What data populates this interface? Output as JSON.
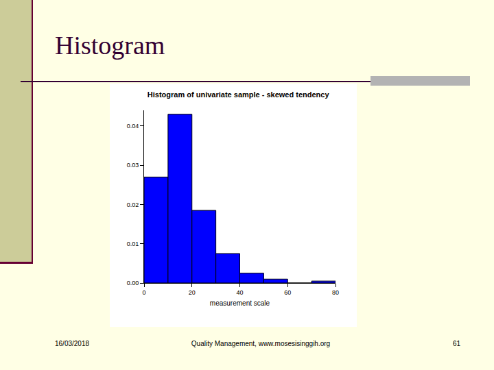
{
  "slide": {
    "title": "Histogram",
    "date": "16/03/2018",
    "footer": "Quality Management, www.mosesisinggih.org",
    "page": 61
  },
  "chart_data": {
    "type": "histogram",
    "title": "Histogram of univariate sample - skewed tendency",
    "x_label": "measurement scale",
    "bins": [
      0,
      10,
      20,
      30,
      40,
      50,
      60,
      70,
      80
    ],
    "values": [
      0.027,
      0.043,
      0.0185,
      0.0075,
      0.0025,
      0.001,
      0,
      0.0005
    ],
    "color": "#0000ff",
    "xlim": [
      0,
      80
    ],
    "xticks": [
      0,
      20,
      40,
      60,
      80
    ],
    "ylim": [
      0,
      0.044
    ],
    "yticks": [
      {
        "value": 0,
        "label": "0.00"
      },
      0.01,
      0.02,
      0.03,
      0.04
    ],
    "grid": false
  }
}
